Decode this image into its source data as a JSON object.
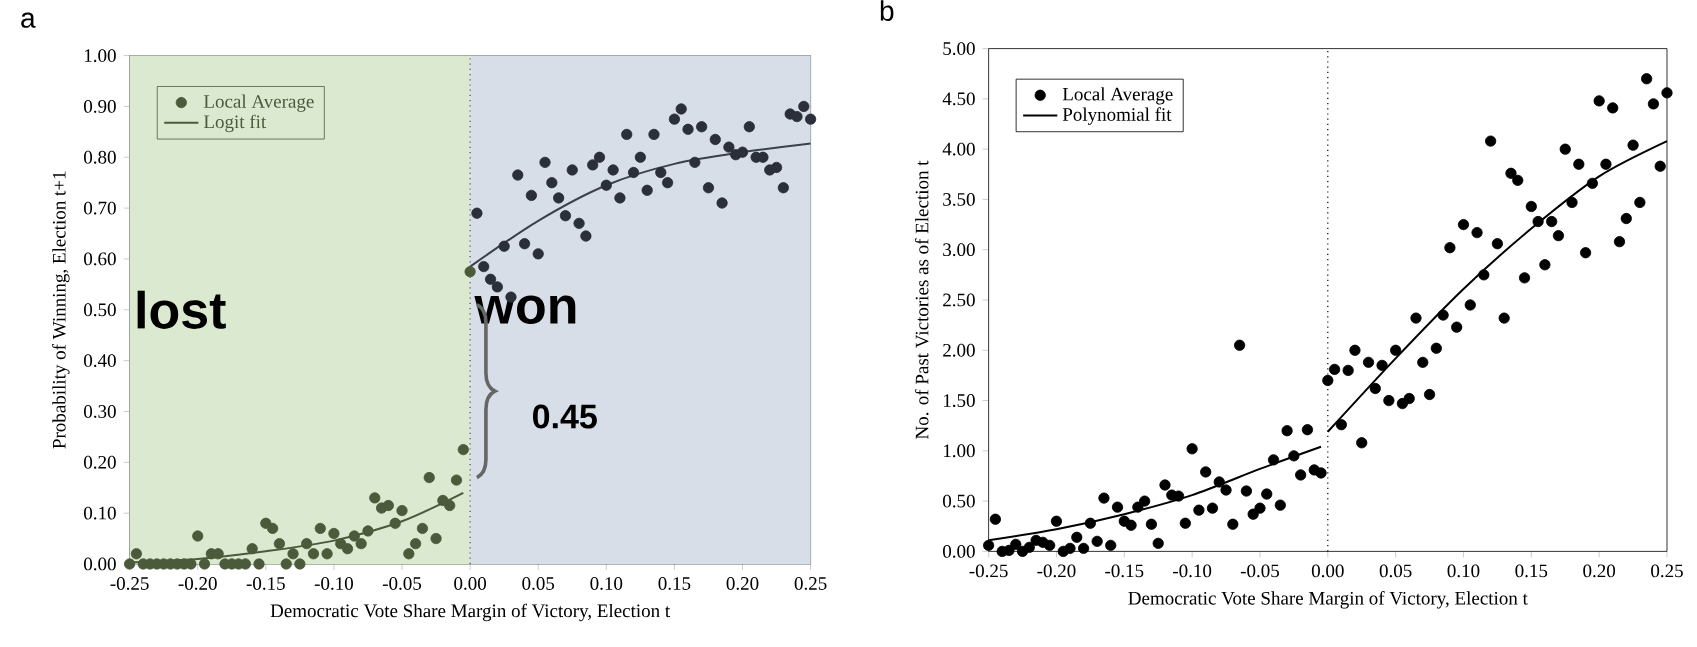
{
  "chart_data": [
    {
      "type": "scatter",
      "title": "a",
      "xlabel": "Democratic Vote Share Margin of Victory, Election t",
      "ylabel": "Probability of Winning, Election t+1",
      "xlim": [
        -0.25,
        0.25
      ],
      "ylim": [
        0,
        1
      ],
      "xticks": [
        {
          "value": -0.25,
          "label": "-0.25"
        },
        {
          "value": -0.2,
          "label": "-0.20"
        },
        {
          "value": -0.15,
          "label": "-0.15"
        },
        {
          "value": -0.1,
          "label": "-0.10"
        },
        {
          "value": -0.05,
          "label": "-0.05"
        },
        {
          "value": 0,
          "label": "0.00"
        },
        {
          "value": 0.05,
          "label": "0.05"
        },
        {
          "value": 0.1,
          "label": "0.10"
        },
        {
          "value": 0.15,
          "label": "0.15"
        },
        {
          "value": 0.2,
          "label": "0.20"
        },
        {
          "value": 0.25,
          "label": "0.25"
        }
      ],
      "yticks": [
        {
          "value": 0,
          "label": "0.00"
        },
        {
          "value": 0.1,
          "label": "0.10"
        },
        {
          "value": 0.2,
          "label": "0.20"
        },
        {
          "value": 0.3,
          "label": "0.30"
        },
        {
          "value": 0.4,
          "label": "0.40"
        },
        {
          "value": 0.5,
          "label": "0.50"
        },
        {
          "value": 0.6,
          "label": "0.60"
        },
        {
          "value": 0.7,
          "label": "0.70"
        },
        {
          "value": 0.8,
          "label": "0.80"
        },
        {
          "value": 0.9,
          "label": "0.90"
        },
        {
          "value": 1,
          "label": "1.00"
        }
      ],
      "legend": "top left",
      "series": [
        {
          "name": "Local Average",
          "marker": "circle",
          "color": "#4a5a3a",
          "x": [
            -0.25,
            -0.245,
            -0.24,
            -0.235,
            -0.23,
            -0.225,
            -0.22,
            -0.215,
            -0.21,
            -0.205,
            -0.2,
            -0.195,
            -0.19,
            -0.185,
            -0.18,
            -0.175,
            -0.17,
            -0.165,
            -0.16,
            -0.155,
            -0.15,
            -0.145,
            -0.14,
            -0.135,
            -0.13,
            -0.125,
            -0.12,
            -0.115,
            -0.11,
            -0.105,
            -0.1,
            -0.095,
            -0.09,
            -0.085,
            -0.08,
            -0.075,
            -0.07,
            -0.065,
            -0.06,
            -0.055,
            -0.05,
            -0.045,
            -0.04,
            -0.035,
            -0.03,
            -0.025,
            -0.02,
            -0.015,
            -0.01,
            -0.005,
            0.0
          ],
          "values": [
            0.0,
            0.02,
            0.0,
            0.0,
            0.0,
            0.0,
            0.0,
            0.0,
            0.0,
            0.0,
            0.055,
            0.0,
            0.02,
            0.02,
            0.0,
            0.0,
            0.0,
            0.0,
            0.03,
            0.0,
            0.08,
            0.07,
            0.04,
            0.0,
            0.02,
            0.0,
            0.04,
            0.02,
            0.07,
            0.02,
            0.06,
            0.04,
            0.03,
            0.055,
            0.04,
            0.065,
            0.13,
            0.11,
            0.115,
            0.08,
            0.105,
            0.02,
            0.04,
            0.07,
            0.17,
            0.05,
            0.125,
            0.115,
            0.165,
            0.225,
            0.575
          ]
        },
        {
          "marker": "circle",
          "color": "#2b2f3a",
          "x": [
            0.005,
            0.01,
            0.015,
            0.02,
            0.025,
            0.03,
            0.035,
            0.04,
            0.045,
            0.05,
            0.055,
            0.06,
            0.065,
            0.07,
            0.075,
            0.08,
            0.085,
            0.09,
            0.095,
            0.1,
            0.105,
            0.11,
            0.115,
            0.12,
            0.125,
            0.13,
            0.135,
            0.14,
            0.145,
            0.15,
            0.155,
            0.16,
            0.165,
            0.17,
            0.175,
            0.18,
            0.185,
            0.19,
            0.195,
            0.2,
            0.205,
            0.21,
            0.215,
            0.22,
            0.225,
            0.23,
            0.235,
            0.24,
            0.245,
            0.25
          ],
          "values": [
            0.69,
            0.585,
            0.56,
            0.545,
            0.625,
            0.525,
            0.765,
            0.63,
            0.725,
            0.61,
            0.79,
            0.75,
            0.72,
            0.685,
            0.775,
            0.67,
            0.645,
            0.785,
            0.8,
            0.745,
            0.775,
            0.72,
            0.845,
            0.77,
            0.8,
            0.735,
            0.845,
            0.77,
            0.75,
            0.875,
            0.895,
            0.855,
            0.79,
            0.86,
            0.74,
            0.835,
            0.71,
            0.82,
            0.805,
            0.81,
            0.86,
            0.8,
            0.8,
            0.775,
            0.78,
            0.74,
            0.885,
            0.88,
            0.9,
            0.875
          ]
        },
        {
          "name": "Logit fit",
          "type": "line",
          "marker": "none",
          "color": "#4a5a3a",
          "x": [
            -0.25,
            -0.2,
            -0.15,
            -0.1,
            -0.05,
            -0.005
          ],
          "values": [
            0.003,
            0.01,
            0.025,
            0.046,
            0.084,
            0.14
          ]
        },
        {
          "type": "line",
          "marker": "none",
          "color": "#3c4048",
          "x": [
            0.0,
            0.05,
            0.1,
            0.15,
            0.2,
            0.25
          ],
          "values": [
            0.585,
            0.675,
            0.745,
            0.787,
            0.81,
            0.827
          ]
        }
      ],
      "bands": [
        {
          "axis": "x",
          "from": -0.25,
          "to": 0,
          "label": "lost",
          "color": "#dbe9d0"
        },
        {
          "axis": "x",
          "from": 0,
          "to": 0.25,
          "label": "won",
          "color": "#d8dee8"
        }
      ],
      "ref_lines": [
        {
          "axis": "x",
          "value": 0,
          "line_style": "dotted",
          "color": "#4a5a3a"
        }
      ],
      "annotations": [
        {
          "text": "0.45",
          "x": 0,
          "y": 0.34
        }
      ]
    },
    {
      "type": "scatter",
      "title": "b",
      "xlabel": "Democratic Vote Share Margin of Victory, Election t",
      "ylabel": "No. of Past Victories as of Election t",
      "xlim": [
        -0.25,
        0.25
      ],
      "ylim": [
        0,
        5
      ],
      "xticks": [
        {
          "value": -0.25,
          "label": "-0.25"
        },
        {
          "value": -0.2,
          "label": "-0.20"
        },
        {
          "value": -0.15,
          "label": "-0.15"
        },
        {
          "value": -0.1,
          "label": "-0.10"
        },
        {
          "value": -0.05,
          "label": "-0.05"
        },
        {
          "value": 0,
          "label": "0.00"
        },
        {
          "value": 0.05,
          "label": "0.05"
        },
        {
          "value": 0.1,
          "label": "0.10"
        },
        {
          "value": 0.15,
          "label": "0.15"
        },
        {
          "value": 0.2,
          "label": "0.20"
        },
        {
          "value": 0.25,
          "label": "0.25"
        }
      ],
      "yticks": [
        {
          "value": 0,
          "label": "0.00"
        },
        {
          "value": 0.5,
          "label": "0.50"
        },
        {
          "value": 1,
          "label": "1.00"
        },
        {
          "value": 1.5,
          "label": "1.50"
        },
        {
          "value": 2,
          "label": "2.00"
        },
        {
          "value": 2.5,
          "label": "2.50"
        },
        {
          "value": 3,
          "label": "3.00"
        },
        {
          "value": 3.5,
          "label": "3.50"
        },
        {
          "value": 4,
          "label": "4.00"
        },
        {
          "value": 4.5,
          "label": "4.50"
        },
        {
          "value": 5,
          "label": "5.00"
        }
      ],
      "legend": "top left",
      "series": [
        {
          "name": "Local Average",
          "marker": "circle",
          "color": "#000000",
          "x": [
            -0.25,
            -0.245,
            -0.24,
            -0.235,
            -0.23,
            -0.225,
            -0.22,
            -0.215,
            -0.21,
            -0.205,
            -0.2,
            -0.195,
            -0.19,
            -0.185,
            -0.18,
            -0.175,
            -0.17,
            -0.165,
            -0.16,
            -0.155,
            -0.15,
            -0.145,
            -0.14,
            -0.135,
            -0.13,
            -0.125,
            -0.12,
            -0.115,
            -0.11,
            -0.105,
            -0.1,
            -0.095,
            -0.09,
            -0.085,
            -0.08,
            -0.075,
            -0.07,
            -0.065,
            -0.06,
            -0.055,
            -0.05,
            -0.045,
            -0.04,
            -0.035,
            -0.03,
            -0.025,
            -0.02,
            -0.015,
            -0.01,
            -0.005,
            0.0,
            0.005,
            0.01,
            0.015,
            0.02,
            0.025,
            0.03,
            0.035,
            0.04,
            0.045,
            0.05,
            0.055,
            0.06,
            0.065,
            0.07,
            0.075,
            0.08,
            0.085,
            0.09,
            0.095,
            0.1,
            0.105,
            0.11,
            0.115,
            0.12,
            0.125,
            0.13,
            0.135,
            0.14,
            0.145,
            0.15,
            0.155,
            0.16,
            0.165,
            0.17,
            0.175,
            0.18,
            0.185,
            0.19,
            0.195,
            0.2,
            0.205,
            0.21,
            0.215,
            0.22,
            0.225,
            0.23,
            0.235,
            0.24,
            0.245,
            0.25
          ],
          "values": [
            0.06,
            0.32,
            0.0,
            0.01,
            0.07,
            0.0,
            0.04,
            0.11,
            0.09,
            0.06,
            0.3,
            0.0,
            0.03,
            0.14,
            0.03,
            0.28,
            0.1,
            0.53,
            0.06,
            0.44,
            0.3,
            0.26,
            0.44,
            0.5,
            0.27,
            0.08,
            0.66,
            0.56,
            0.55,
            0.28,
            1.02,
            0.41,
            0.79,
            0.43,
            0.69,
            0.61,
            0.27,
            2.05,
            0.6,
            0.37,
            0.43,
            0.57,
            0.91,
            0.46,
            1.2,
            0.95,
            0.76,
            1.21,
            0.81,
            0.78,
            1.7,
            1.81,
            1.26,
            1.8,
            2.0,
            1.08,
            1.88,
            1.62,
            1.85,
            1.5,
            2.0,
            1.47,
            1.52,
            2.32,
            1.88,
            1.56,
            2.02,
            2.35,
            3.02,
            2.23,
            3.25,
            2.45,
            3.17,
            2.75,
            4.08,
            3.06,
            2.32,
            3.76,
            3.69,
            2.72,
            3.43,
            3.28,
            2.85,
            3.28,
            3.14,
            4.0,
            3.47,
            3.85,
            2.97,
            3.66,
            4.48,
            3.85,
            4.41,
            3.08,
            3.31,
            4.04,
            3.47,
            4.7,
            4.45,
            3.83,
            4.56
          ]
        },
        {
          "name": "Polynomial fit",
          "type": "line",
          "marker": "none",
          "color": "#000000",
          "x": [
            -0.25,
            -0.2,
            -0.15,
            -0.1,
            -0.05,
            -0.005
          ],
          "values": [
            0.11,
            0.22,
            0.37,
            0.56,
            0.82,
            1.04
          ]
        },
        {
          "type": "line",
          "marker": "none",
          "color": "#000000",
          "x": [
            0.0,
            0.05,
            0.1,
            0.15,
            0.2,
            0.25
          ],
          "values": [
            1.19,
            1.92,
            2.61,
            3.21,
            3.73,
            4.08
          ]
        }
      ],
      "ref_lines": [
        {
          "axis": "x",
          "value": 0,
          "line_style": "dotted",
          "color": "#000000"
        }
      ]
    }
  ]
}
